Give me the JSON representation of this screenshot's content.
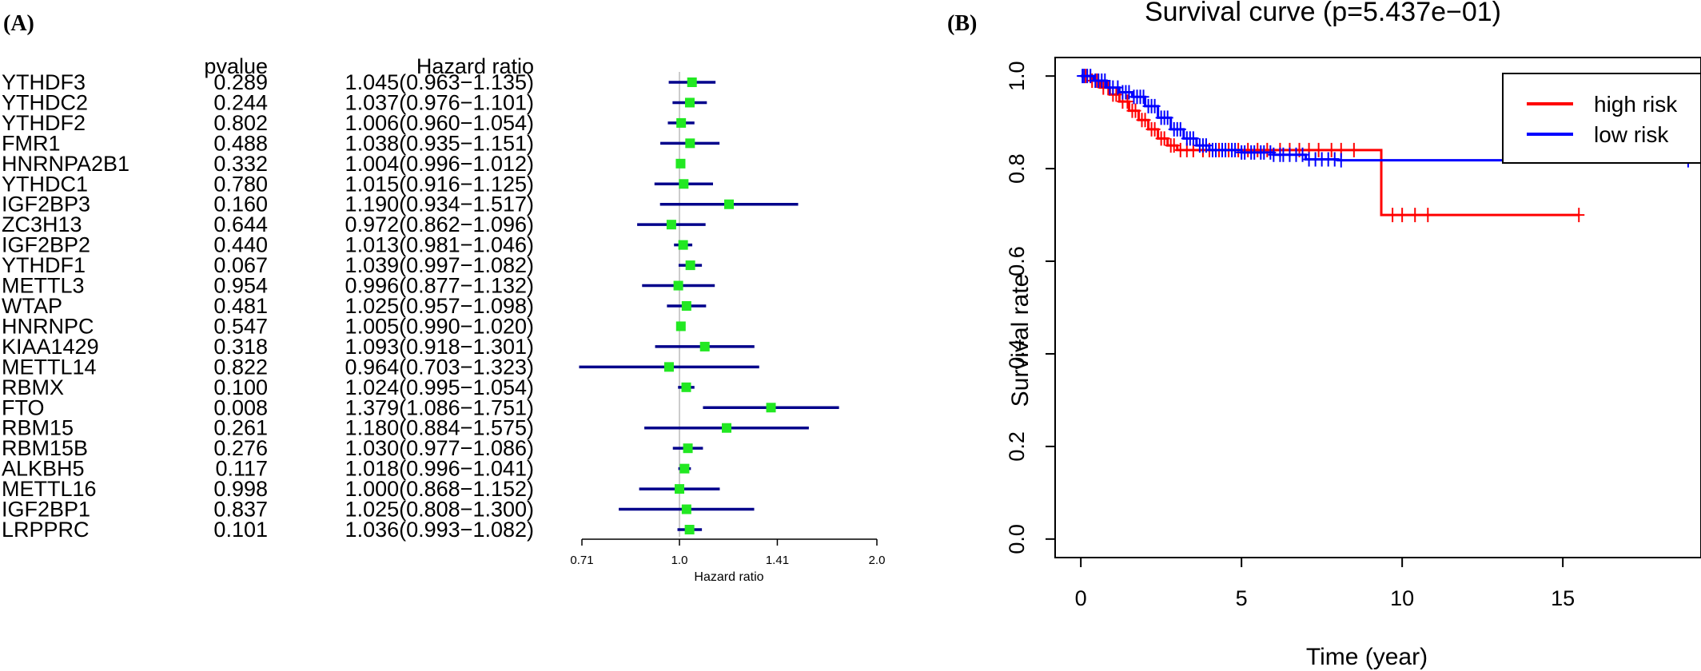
{
  "panel_a": {
    "label": "(A)",
    "chart_data": {
      "type": "forest",
      "col_pvalue_header": "pvalue",
      "col_hr_header": "Hazard ratio",
      "xlabel": "Hazard ratio",
      "x_scale": "log",
      "xlim": [
        0.71,
        2.0
      ],
      "xticks": [
        0.71,
        1.0,
        1.41,
        2.0
      ],
      "xtick_labels": [
        "0.71",
        "1.0",
        "1.41",
        "2.0"
      ],
      "reference_line": 1.0,
      "rows": [
        {
          "gene": "YTHDF3",
          "pvalue": "0.289",
          "hr_text": "1.045(0.963−1.135)",
          "hr": 1.045,
          "lo": 0.963,
          "hi": 1.135
        },
        {
          "gene": "YTHDC2",
          "pvalue": "0.244",
          "hr_text": "1.037(0.976−1.101)",
          "hr": 1.037,
          "lo": 0.976,
          "hi": 1.101
        },
        {
          "gene": "YTHDF2",
          "pvalue": "0.802",
          "hr_text": "1.006(0.960−1.054)",
          "hr": 1.006,
          "lo": 0.96,
          "hi": 1.054
        },
        {
          "gene": "FMR1",
          "pvalue": "0.488",
          "hr_text": "1.038(0.935−1.151)",
          "hr": 1.038,
          "lo": 0.935,
          "hi": 1.151
        },
        {
          "gene": "HNRNPA2B1",
          "pvalue": "0.332",
          "hr_text": "1.004(0.996−1.012)",
          "hr": 1.004,
          "lo": 0.996,
          "hi": 1.012
        },
        {
          "gene": "YTHDC1",
          "pvalue": "0.780",
          "hr_text": "1.015(0.916−1.125)",
          "hr": 1.015,
          "lo": 0.916,
          "hi": 1.125
        },
        {
          "gene": "IGF2BP3",
          "pvalue": "0.160",
          "hr_text": "1.190(0.934−1.517)",
          "hr": 1.19,
          "lo": 0.934,
          "hi": 1.517
        },
        {
          "gene": "ZC3H13",
          "pvalue": "0.644",
          "hr_text": "0.972(0.862−1.096)",
          "hr": 0.972,
          "lo": 0.862,
          "hi": 1.096
        },
        {
          "gene": "IGF2BP2",
          "pvalue": "0.440",
          "hr_text": "1.013(0.981−1.046)",
          "hr": 1.013,
          "lo": 0.981,
          "hi": 1.046
        },
        {
          "gene": "YTHDF1",
          "pvalue": "0.067",
          "hr_text": "1.039(0.997−1.082)",
          "hr": 1.039,
          "lo": 0.997,
          "hi": 1.082
        },
        {
          "gene": "METTL3",
          "pvalue": "0.954",
          "hr_text": "0.996(0.877−1.132)",
          "hr": 0.996,
          "lo": 0.877,
          "hi": 1.132
        },
        {
          "gene": "WTAP",
          "pvalue": "0.481",
          "hr_text": "1.025(0.957−1.098)",
          "hr": 1.025,
          "lo": 0.957,
          "hi": 1.098
        },
        {
          "gene": "HNRNPC",
          "pvalue": "0.547",
          "hr_text": "1.005(0.990−1.020)",
          "hr": 1.005,
          "lo": 0.99,
          "hi": 1.02
        },
        {
          "gene": "KIAA1429",
          "pvalue": "0.318",
          "hr_text": "1.093(0.918−1.301)",
          "hr": 1.093,
          "lo": 0.918,
          "hi": 1.301
        },
        {
          "gene": "METTL14",
          "pvalue": "0.822",
          "hr_text": "0.964(0.703−1.323)",
          "hr": 0.964,
          "lo": 0.703,
          "hi": 1.323
        },
        {
          "gene": "RBMX",
          "pvalue": "0.100",
          "hr_text": "1.024(0.995−1.054)",
          "hr": 1.024,
          "lo": 0.995,
          "hi": 1.054
        },
        {
          "gene": "FTO",
          "pvalue": "0.008",
          "hr_text": "1.379(1.086−1.751)",
          "hr": 1.379,
          "lo": 1.086,
          "hi": 1.751
        },
        {
          "gene": "RBM15",
          "pvalue": "0.261",
          "hr_text": "1.180(0.884−1.575)",
          "hr": 1.18,
          "lo": 0.884,
          "hi": 1.575
        },
        {
          "gene": "RBM15B",
          "pvalue": "0.276",
          "hr_text": "1.030(0.977−1.086)",
          "hr": 1.03,
          "lo": 0.977,
          "hi": 1.086
        },
        {
          "gene": "ALKBH5",
          "pvalue": "0.117",
          "hr_text": "1.018(0.996−1.041)",
          "hr": 1.018,
          "lo": 0.996,
          "hi": 1.041
        },
        {
          "gene": "METTL16",
          "pvalue": "0.998",
          "hr_text": "1.000(0.868−1.152)",
          "hr": 1.0,
          "lo": 0.868,
          "hi": 1.152
        },
        {
          "gene": "IGF2BP1",
          "pvalue": "0.837",
          "hr_text": "1.025(0.808−1.300)",
          "hr": 1.025,
          "lo": 0.808,
          "hi": 1.3
        },
        {
          "gene": "LRPPRC",
          "pvalue": "0.101",
          "hr_text": "1.036(0.993−1.082)",
          "hr": 1.036,
          "lo": 0.993,
          "hi": 1.082
        }
      ],
      "colors": {
        "ci_line": "#00008b",
        "point": "#22e822",
        "reference": "#bbbbbb"
      }
    }
  },
  "panel_b": {
    "label": "(B)",
    "chart_data": {
      "type": "line",
      "title": "Survival curve (p=5.437e−01)",
      "xlabel": "Time (year)",
      "ylabel": "Survival rate",
      "xlim": [
        -0.8,
        19.3
      ],
      "ylim": [
        -0.04,
        1.04
      ],
      "xticks": [
        0,
        5,
        10,
        15
      ],
      "yticks": [
        0.0,
        0.2,
        0.4,
        0.6,
        0.8,
        1.0
      ],
      "ytick_labels": [
        "0.0",
        "0.2",
        "0.4",
        "0.6",
        "0.8",
        "1.0"
      ],
      "legend_position": "top-right",
      "series": [
        {
          "name": "high risk",
          "color": "#ff0000",
          "steps": [
            [
              0,
              1.0
            ],
            [
              0.3,
              0.99
            ],
            [
              0.6,
              0.975
            ],
            [
              0.9,
              0.96
            ],
            [
              1.2,
              0.945
            ],
            [
              1.5,
              0.925
            ],
            [
              1.8,
              0.905
            ],
            [
              2.1,
              0.885
            ],
            [
              2.4,
              0.865
            ],
            [
              2.7,
              0.85
            ],
            [
              3.0,
              0.84
            ],
            [
              9.35,
              0.84
            ],
            [
              9.35,
              0.7
            ],
            [
              15.5,
              0.7
            ]
          ],
          "censor_times": [
            0.15,
            0.35,
            0.5,
            0.7,
            0.85,
            1.0,
            1.1,
            1.3,
            1.45,
            1.6,
            1.7,
            1.9,
            2.0,
            2.2,
            2.3,
            2.5,
            2.6,
            2.8,
            2.9,
            3.1,
            3.3,
            3.5,
            3.8,
            4.0,
            4.3,
            4.6,
            4.9,
            5.2,
            5.5,
            5.8,
            6.2,
            6.5,
            6.8,
            7.1,
            7.4,
            7.8,
            8.1,
            8.5,
            9.7,
            10.0,
            10.4,
            10.8,
            15.5
          ]
        },
        {
          "name": "low risk",
          "color": "#0000ff",
          "steps": [
            [
              0,
              1.0
            ],
            [
              0.4,
              0.99
            ],
            [
              0.8,
              0.975
            ],
            [
              1.2,
              0.965
            ],
            [
              1.6,
              0.955
            ],
            [
              2.0,
              0.935
            ],
            [
              2.4,
              0.91
            ],
            [
              2.8,
              0.885
            ],
            [
              3.2,
              0.865
            ],
            [
              3.6,
              0.85
            ],
            [
              4.0,
              0.84
            ],
            [
              5.0,
              0.835
            ],
            [
              6.0,
              0.83
            ],
            [
              7.0,
              0.82
            ],
            [
              8.0,
              0.818
            ],
            [
              18.9,
              0.818
            ]
          ],
          "censor_times": [
            0.05,
            0.1,
            0.2,
            0.3,
            0.45,
            0.55,
            0.65,
            0.75,
            0.9,
            1.0,
            1.15,
            1.3,
            1.4,
            1.5,
            1.65,
            1.75,
            1.85,
            1.95,
            2.1,
            2.2,
            2.3,
            2.5,
            2.6,
            2.7,
            2.9,
            3.0,
            3.1,
            3.3,
            3.4,
            3.5,
            3.7,
            3.8,
            3.9,
            4.1,
            4.2,
            4.4,
            4.5,
            4.7,
            4.8,
            5.0,
            5.1,
            5.3,
            5.4,
            5.6,
            5.7,
            5.9,
            6.0,
            6.2,
            6.3,
            6.5,
            6.7,
            6.9,
            7.1,
            7.3,
            7.5,
            7.7,
            7.9,
            8.1,
            18.9
          ]
        }
      ]
    }
  }
}
